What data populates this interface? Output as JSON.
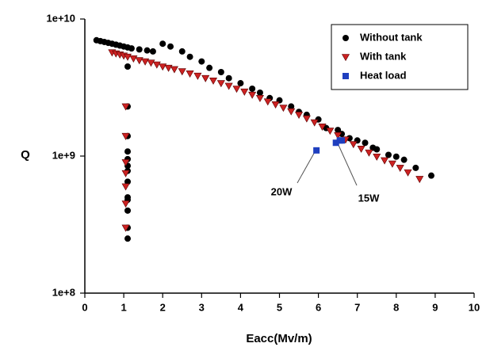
{
  "chart_data": {
    "type": "scatter",
    "x_label": "Eacc(Mv/m)",
    "y_label": "Q",
    "xlim": [
      0,
      10
    ],
    "xticks": [
      0,
      1,
      2,
      3,
      4,
      5,
      6,
      7,
      8,
      9,
      10
    ],
    "ylim": [
      100000000.0,
      10000000000.0
    ],
    "log_y": true,
    "yticks": [
      {
        "value": 100000000.0,
        "label": "1e+8"
      },
      {
        "value": 1000000000.0,
        "label": "1e+9"
      },
      {
        "value": 10000000000.0,
        "label": "1e+10"
      }
    ],
    "legend": "top right",
    "series": [
      {
        "name": "Without tank",
        "color": "#000000",
        "marker": "circle",
        "x": [
          0.3,
          0.4,
          0.5,
          0.6,
          0.7,
          0.8,
          0.9,
          1.0,
          1.1,
          1.2,
          1.4,
          1.6,
          1.75,
          2.0,
          2.2,
          2.5,
          2.7,
          3.0,
          3.2,
          3.5,
          3.7,
          4.0,
          4.3,
          4.5,
          4.75,
          5.0,
          5.3,
          5.5,
          5.7,
          6.0,
          6.2,
          6.5,
          6.6,
          6.8,
          7.0,
          7.2,
          7.4,
          7.5,
          7.8,
          8.0,
          8.2,
          8.5,
          8.9,
          1.1,
          1.1,
          1.1,
          1.1,
          1.1,
          1.1,
          1.1,
          1.1,
          1.1,
          1.1,
          1.1,
          1.1,
          1.1
        ],
        "values": [
          7000000000.0,
          6900000000.0,
          6800000000.0,
          6700000000.0,
          6600000000.0,
          6500000000.0,
          6400000000.0,
          6300000000.0,
          6200000000.0,
          6100000000.0,
          6000000000.0,
          5900000000.0,
          5800000000.0,
          6600000000.0,
          6300000000.0,
          5800000000.0,
          5300000000.0,
          4900000000.0,
          4400000000.0,
          4100000000.0,
          3700000000.0,
          3400000000.0,
          3100000000.0,
          2900000000.0,
          2650000000.0,
          2550000000.0,
          2300000000.0,
          2100000000.0,
          2000000000.0,
          1850000000.0,
          1600000000.0,
          1550000000.0,
          1450000000.0,
          1350000000.0,
          1300000000.0,
          1250000000.0,
          1150000000.0,
          1120000000.0,
          1020000000.0,
          990000000.0,
          940000000.0,
          820000000.0,
          720000000.0,
          4500000000.0,
          2300000000.0,
          1400000000.0,
          1080000000.0,
          950000000.0,
          850000000.0,
          780000000.0,
          650000000.0,
          500000000.0,
          480000000.0,
          400000000.0,
          300000000.0,
          250000000.0
        ]
      },
      {
        "name": "With tank",
        "color": "#cc2222",
        "marker": "triangle-down",
        "x": [
          0.7,
          0.8,
          0.9,
          1.0,
          1.1,
          1.25,
          1.4,
          1.55,
          1.7,
          1.85,
          2.0,
          2.15,
          2.3,
          2.5,
          2.7,
          2.9,
          3.1,
          3.3,
          3.5,
          3.7,
          3.9,
          4.1,
          4.3,
          4.5,
          4.7,
          4.9,
          5.1,
          5.3,
          5.5,
          5.7,
          5.9,
          6.1,
          6.3,
          6.5,
          6.7,
          6.9,
          7.1,
          7.3,
          7.5,
          7.7,
          7.9,
          8.1,
          8.3,
          8.6,
          1.05,
          1.05,
          1.05,
          1.05,
          1.05,
          1.05,
          1.05
        ],
        "values": [
          5700000000.0,
          5600000000.0,
          5500000000.0,
          5400000000.0,
          5300000000.0,
          5150000000.0,
          5000000000.0,
          4900000000.0,
          4800000000.0,
          4650000000.0,
          4500000000.0,
          4400000000.0,
          4300000000.0,
          4150000000.0,
          4000000000.0,
          3850000000.0,
          3700000000.0,
          3550000000.0,
          3400000000.0,
          3250000000.0,
          3100000000.0,
          2950000000.0,
          2800000000.0,
          2650000000.0,
          2500000000.0,
          2380000000.0,
          2250000000.0,
          2120000000.0,
          2000000000.0,
          1880000000.0,
          1760000000.0,
          1640000000.0,
          1530000000.0,
          1420000000.0,
          1320000000.0,
          1220000000.0,
          1130000000.0,
          1060000000.0,
          990000000.0,
          930000000.0,
          880000000.0,
          820000000.0,
          760000000.0,
          680000000.0,
          2300000000.0,
          1400000000.0,
          900000000.0,
          750000000.0,
          600000000.0,
          450000000.0,
          300000000.0
        ]
      },
      {
        "name": "Heat load",
        "color": "#1f3fbf",
        "marker": "square",
        "x": [
          5.95,
          6.45,
          6.55,
          6.6
        ],
        "values": [
          1100000000.0,
          1250000000.0,
          1300000000.0,
          1300000000.0
        ]
      }
    ],
    "annotations": [
      "20W",
      "15W"
    ]
  }
}
